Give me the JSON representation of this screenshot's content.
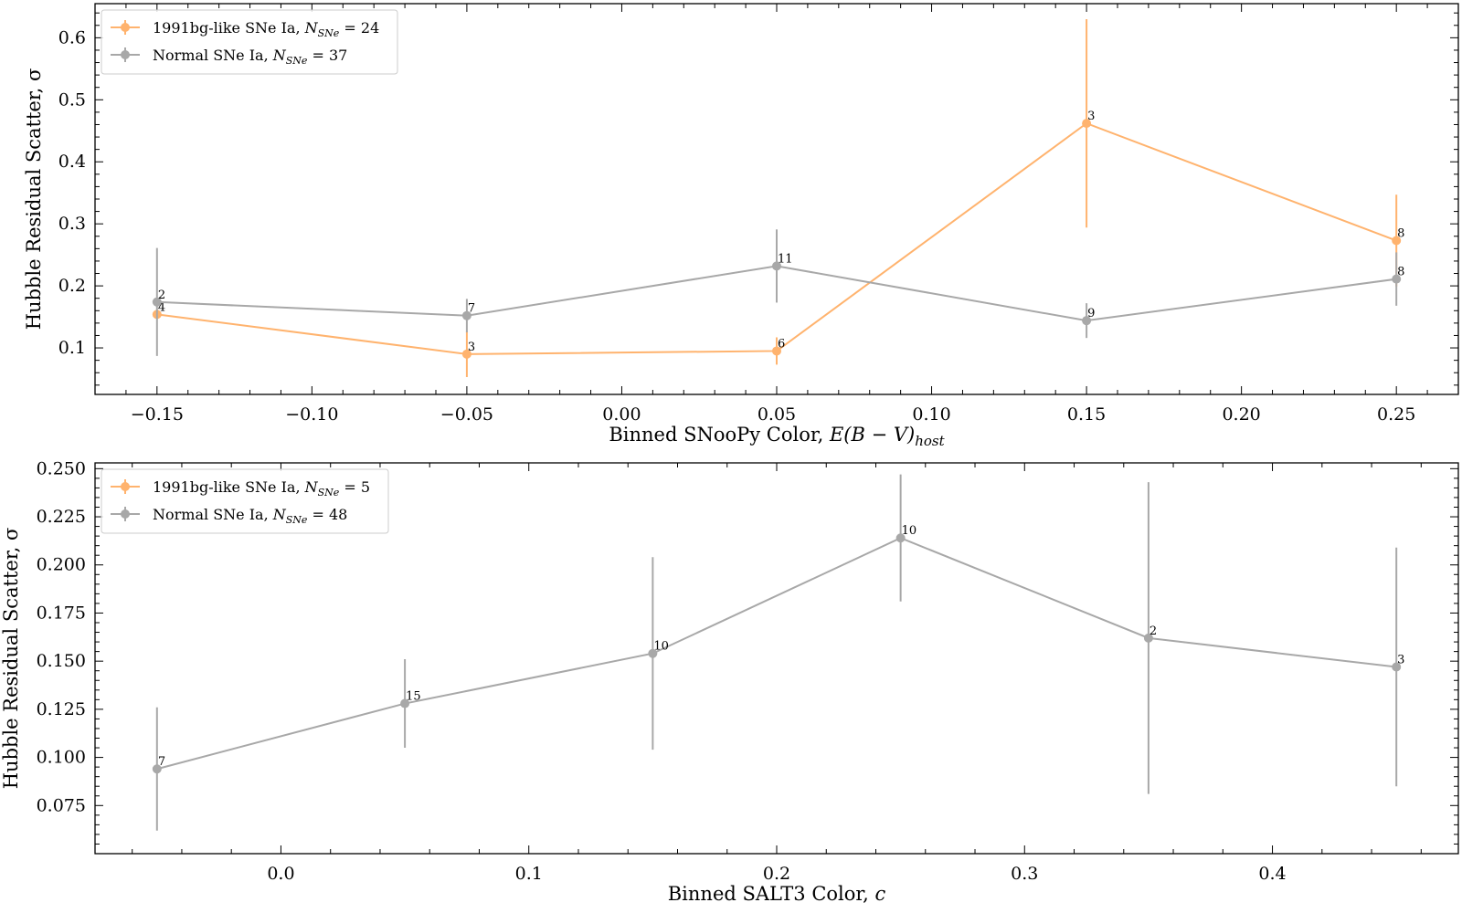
{
  "chart_data": [
    {
      "type": "line",
      "xlabel": "Binned SNooPy Color, E(B − V)host",
      "xlabel_main": "Binned SNooPy Color, ",
      "xlabel_var": "E(B − V)",
      "xlabel_sub": "host",
      "ylabel": "Hubble Residual Scatter, σ",
      "xlim": [
        -0.17,
        0.27
      ],
      "ylim": [
        0.025,
        0.655
      ],
      "xticks": [
        -0.15,
        -0.1,
        -0.05,
        0.0,
        0.05,
        0.1,
        0.15,
        0.2,
        0.25
      ],
      "xtick_labels": [
        "−0.15",
        "−0.10",
        "−0.05",
        "0.00",
        "0.05",
        "0.10",
        "0.15",
        "0.20",
        "0.25"
      ],
      "yticks": [
        0.1,
        0.2,
        0.3,
        0.4,
        0.5,
        0.6
      ],
      "ytick_labels": [
        "0.1",
        "0.2",
        "0.3",
        "0.4",
        "0.5",
        "0.6"
      ],
      "legend_position": "top-left",
      "series": [
        {
          "name": "1991bg-like SNe Ia, NSNe = 24",
          "legend_main": "1991bg-like SNe Ia, ",
          "legend_eq": " = 24",
          "color": "#ffb36e",
          "x": [
            -0.15,
            -0.05,
            0.05,
            0.15,
            0.25
          ],
          "y": [
            0.154,
            0.09,
            0.095,
            0.462,
            0.273
          ],
          "yerr": [
            0.0,
            0.037,
            0.022,
            0.168,
            0.074
          ],
          "counts": [
            "4",
            "3",
            "6",
            "3",
            "8"
          ]
        },
        {
          "name": "Normal SNe Ia, NSNe = 37",
          "legend_main": "Normal SNe Ia, ",
          "legend_eq": " = 37",
          "color": "#a8a8a8",
          "x": [
            -0.15,
            -0.05,
            0.05,
            0.15,
            0.25
          ],
          "y": [
            0.174,
            0.152,
            0.232,
            0.144,
            0.211
          ],
          "yerr": [
            0.087,
            0.027,
            0.059,
            0.028,
            0.043
          ],
          "counts": [
            "2",
            "7",
            "11",
            "9",
            "8"
          ]
        }
      ]
    },
    {
      "type": "line",
      "xlabel": "Binned SALT3 Color, c",
      "xlabel_main": "Binned SALT3 Color, ",
      "xlabel_var": "c",
      "xlabel_sub": "",
      "ylabel": "Hubble Residual Scatter, σ",
      "xlim": [
        -0.075,
        0.475
      ],
      "ylim": [
        0.05,
        0.253
      ],
      "xticks": [
        0.0,
        0.1,
        0.2,
        0.3,
        0.4
      ],
      "xtick_labels": [
        "0.0",
        "0.1",
        "0.2",
        "0.3",
        "0.4"
      ],
      "yticks": [
        0.075,
        0.1,
        0.125,
        0.15,
        0.175,
        0.2,
        0.225,
        0.25
      ],
      "ytick_labels": [
        "0.075",
        "0.100",
        "0.125",
        "0.150",
        "0.175",
        "0.200",
        "0.225",
        "0.250"
      ],
      "legend_position": "top-left",
      "series": [
        {
          "name": "1991bg-like SNe Ia, NSNe = 5",
          "legend_main": "1991bg-like SNe Ia, ",
          "legend_eq": " = 5",
          "color": "#ffb36e",
          "x": [],
          "y": [],
          "yerr": [],
          "counts": []
        },
        {
          "name": "Normal SNe Ia, NSNe = 48",
          "legend_main": "Normal SNe Ia, ",
          "legend_eq": " = 48",
          "color": "#a8a8a8",
          "x": [
            -0.05,
            0.05,
            0.15,
            0.25,
            0.35,
            0.45
          ],
          "y": [
            0.094,
            0.128,
            0.154,
            0.214,
            0.162,
            0.147
          ],
          "yerr": [
            0.032,
            0.023,
            0.05,
            0.033,
            0.081,
            0.062
          ],
          "counts": [
            "7",
            "15",
            "10",
            "10",
            "2",
            "3"
          ]
        }
      ]
    }
  ]
}
